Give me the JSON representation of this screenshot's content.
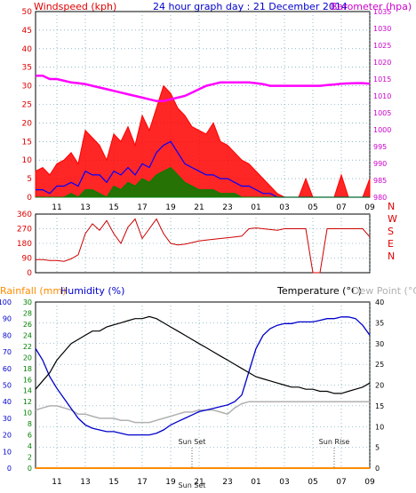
{
  "header": {
    "left_label": "Windspeed (kph)",
    "title": "24 hour graph day : 21 December 2014",
    "right_label": "Barometer (hpa)"
  },
  "colors": {
    "wind": "#ff0000",
    "gust": "#ff0000",
    "wind_avg": "#0000ff",
    "wind_low": "#008000",
    "barometer": "#ff00ff",
    "direction": "#cc0000",
    "temperature": "#000000",
    "humidity": "#0000cc",
    "dewpoint": "#b0b0b0",
    "rainfall": "#ff8c00",
    "axis_red": "#dd0000",
    "axis_blue": "#0000cc",
    "axis_green": "#008000",
    "grid": "#4a8fa8"
  },
  "x_ticks": [
    "11",
    "13",
    "15",
    "17",
    "19",
    "21",
    "23",
    "01",
    "03",
    "05",
    "07",
    "09"
  ],
  "chart_data": [
    {
      "type": "area",
      "name": "wind",
      "title": "24 hour graph day : 21 December 2014",
      "ylabel_left": "Windspeed (kph)",
      "ylabel_right": "Barometer (hpa)",
      "ylim_left": [
        0,
        50
      ],
      "ylim_right": [
        980,
        1035
      ],
      "left_ticks": [
        "0",
        "5",
        "10",
        "15",
        "20",
        "25",
        "30",
        "35",
        "40",
        "45",
        "50"
      ],
      "right_ticks": [
        "980",
        "985",
        "990",
        "995",
        "1000",
        "1005",
        "1010",
        "1015",
        "1020",
        "1025",
        "1030",
        "1035"
      ],
      "x_hours": [
        9.5,
        10,
        10.5,
        11,
        11.5,
        12,
        12.5,
        13,
        13.5,
        14,
        14.5,
        15,
        15.5,
        16,
        16.5,
        17,
        17.5,
        18,
        18.5,
        19,
        19.5,
        20,
        20.5,
        21,
        21.5,
        22,
        22.5,
        23,
        23.5,
        24,
        24.5,
        25,
        25.5,
        26,
        26.5,
        27,
        27.5,
        28,
        28.5,
        29,
        29.5,
        30,
        30.5,
        31,
        31.5,
        32,
        32.5,
        33
      ],
      "gust_kph": [
        7,
        8,
        6,
        9,
        10,
        12,
        9,
        18,
        16,
        14,
        10,
        17,
        15,
        19,
        14,
        22,
        18,
        24,
        30,
        28,
        24,
        22,
        19,
        18,
        17,
        20,
        15,
        14,
        12,
        10,
        9,
        7,
        5,
        3,
        1,
        0,
        0,
        0,
        5,
        0,
        0,
        0,
        0,
        6,
        0,
        0,
        0,
        5
      ],
      "avg_kph": [
        2,
        2,
        1,
        3,
        3,
        4,
        3,
        7,
        6,
        6,
        4,
        7,
        6,
        8,
        6,
        9,
        8,
        12,
        14,
        15,
        12,
        9,
        8,
        7,
        6,
        6,
        5,
        5,
        4,
        3,
        3,
        2,
        1,
        1,
        0,
        0,
        0,
        0,
        0,
        0,
        0,
        0,
        0,
        0,
        0,
        0,
        0,
        0
      ],
      "low_kph": [
        0,
        0,
        0,
        0,
        0,
        1,
        0,
        2,
        2,
        1,
        0,
        3,
        2,
        4,
        3,
        5,
        4,
        6,
        7,
        8,
        6,
        4,
        3,
        2,
        2,
        2,
        1,
        1,
        1,
        0,
        0,
        0,
        0,
        0,
        0,
        0,
        0,
        0,
        0,
        0,
        0,
        0,
        0,
        0,
        0,
        0,
        0,
        0
      ],
      "barometer_hpa": [
        1016,
        1016,
        1015,
        1015,
        1014.5,
        1014,
        1013.8,
        1013.5,
        1013,
        1012.5,
        1012,
        1011.5,
        1011,
        1010.5,
        1010,
        1009.5,
        1009,
        1008.5,
        1008.5,
        1009,
        1009.5,
        1010,
        1011,
        1012,
        1013,
        1013.5,
        1014,
        1014,
        1014,
        1014,
        1014,
        1013.8,
        1013.5,
        1013,
        1013,
        1013,
        1013,
        1013,
        1013,
        1013,
        1013,
        1013.2,
        1013.4,
        1013.6,
        1013.7,
        1013.8,
        1013.8,
        1013.6
      ]
    },
    {
      "type": "line",
      "name": "direction",
      "ylim": [
        0,
        360
      ],
      "left_ticks": [
        "0",
        "90",
        "180",
        "270",
        "360"
      ],
      "right_ticks": [
        "N",
        "E",
        "S",
        "W",
        "N"
      ],
      "x_hours": [
        9.5,
        10,
        10.5,
        11,
        11.5,
        12,
        12.5,
        13,
        13.5,
        14,
        14.5,
        15,
        15.5,
        16,
        16.5,
        17,
        17.5,
        18,
        18.5,
        19,
        19.5,
        20,
        20.5,
        21,
        21.5,
        22,
        22.5,
        23,
        23.5,
        24,
        24.5,
        25,
        25.5,
        26,
        26.5,
        27,
        27.5,
        28,
        28.5,
        29,
        29.5,
        30,
        30.5,
        31,
        31.5,
        32,
        32.5,
        33
      ],
      "degrees": [
        80,
        80,
        75,
        75,
        70,
        85,
        110,
        240,
        300,
        260,
        320,
        240,
        180,
        280,
        330,
        210,
        270,
        330,
        240,
        180,
        170,
        175,
        185,
        195,
        200,
        205,
        210,
        215,
        220,
        225,
        270,
        275,
        270,
        265,
        260,
        270,
        270,
        270,
        270,
        0,
        0,
        270,
        270,
        270,
        270,
        270,
        270,
        220
      ]
    },
    {
      "type": "line",
      "name": "temperature",
      "ylabel_left_1": "Rainfall (mm)",
      "ylabel_left_2": "Humidity (%)",
      "ylabel_right_1": "Temperature (°C)",
      "ylabel_right_2": "Dew Point (°C)",
      "rain_ticks": [
        "0",
        "10",
        "20",
        "30",
        "40",
        "50",
        "60",
        "70",
        "80",
        "90",
        "100"
      ],
      "humidity_ticks": [
        "0",
        "2",
        "4",
        "6",
        "8",
        "10",
        "12",
        "14",
        "16",
        "18",
        "20",
        "22",
        "24",
        "26",
        "28",
        "30"
      ],
      "temp_ticks": [
        "0",
        "5",
        "10",
        "15",
        "20",
        "25",
        "30",
        "35",
        "40"
      ],
      "ylim_temp": [
        0,
        40
      ],
      "ylim_humidity": [
        0,
        100
      ],
      "ylim_rain": [
        0,
        30
      ],
      "annotations": [
        "Sun Set",
        "Sun Rise",
        "Sun Set"
      ],
      "x_hours": [
        9.5,
        10,
        10.5,
        11,
        11.5,
        12,
        12.5,
        13,
        13.5,
        14,
        14.5,
        15,
        15.5,
        16,
        16.5,
        17,
        17.5,
        18,
        18.5,
        19,
        19.5,
        20,
        20.5,
        21,
        21.5,
        22,
        22.5,
        23,
        23.5,
        24,
        24.5,
        25,
        25.5,
        26,
        26.5,
        27,
        27.5,
        28,
        28.5,
        29,
        29.5,
        30,
        30.5,
        31,
        31.5,
        32,
        32.5,
        33
      ],
      "temperature_c": [
        19,
        21,
        23,
        26,
        28,
        30,
        31,
        32,
        33,
        33,
        34,
        34.5,
        35,
        35.5,
        36,
        36,
        36.5,
        36,
        35,
        34,
        33,
        32,
        31,
        30,
        29,
        28,
        27,
        26,
        25,
        24,
        23,
        22,
        21.5,
        21,
        20.5,
        20,
        19.5,
        19.5,
        19,
        19,
        18.5,
        18.5,
        18,
        18,
        18.5,
        19,
        19.5,
        20.5
      ],
      "humidity_pct": [
        72,
        65,
        55,
        48,
        42,
        36,
        30,
        26,
        24,
        23,
        22,
        22,
        21,
        20,
        20,
        20,
        20,
        21,
        23,
        26,
        28,
        30,
        32,
        34,
        35,
        36,
        37,
        38,
        40,
        44,
        58,
        72,
        80,
        84,
        86,
        87,
        87,
        88,
        88,
        88,
        89,
        90,
        90,
        91,
        91,
        90,
        86,
        80
      ],
      "dewpoint_c": [
        14,
        14.5,
        15,
        15,
        14.5,
        14,
        13,
        13,
        12.5,
        12,
        12,
        12,
        11.5,
        11.5,
        11,
        11,
        11,
        11.5,
        12,
        12.5,
        13,
        13.5,
        13.5,
        14,
        14,
        14,
        13.5,
        13,
        14.5,
        15.5,
        16,
        16,
        16,
        16,
        16,
        16,
        16,
        16,
        16,
        16,
        16,
        16,
        16,
        16,
        16,
        16,
        16,
        16
      ],
      "rainfall_mm": [
        0,
        0,
        0,
        0,
        0,
        0,
        0,
        0,
        0,
        0,
        0,
        0,
        0,
        0,
        0,
        0,
        0,
        0,
        0,
        0,
        0,
        0,
        0,
        0,
        0,
        0,
        0,
        0,
        0,
        0,
        0,
        0,
        0,
        0,
        0,
        0,
        0,
        0,
        0,
        0,
        0,
        0,
        0,
        0,
        0,
        0,
        0,
        0
      ]
    }
  ]
}
